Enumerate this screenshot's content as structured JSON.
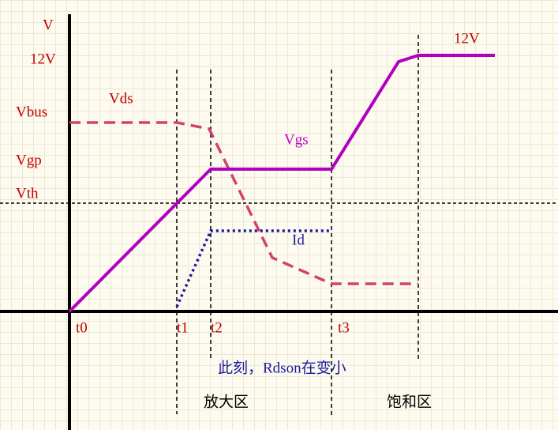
{
  "labels": {
    "v_axis": "V",
    "v12_left": "12V",
    "v12_right": "12V",
    "vbus": "Vbus",
    "vgp": "Vgp",
    "vth": "Vth",
    "vds": "Vds",
    "vgs": "Vgs",
    "id": "Id"
  },
  "times": [
    "t0",
    "t1",
    "t2",
    "t3"
  ],
  "note": "此刻，Rdson在变小",
  "regions": [
    "放大区",
    "饱和区"
  ]
}
